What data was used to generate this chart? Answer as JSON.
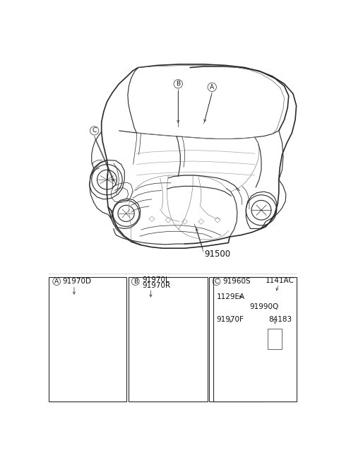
{
  "bg_color": "#ffffff",
  "line_color": "#2a2a2a",
  "label_color": "#111111",
  "part_number_main": "91500",
  "callout_A": "A",
  "callout_B": "B",
  "callout_C": "C",
  "label_91970D": "91970D",
  "label_91970L": "91970L",
  "label_91970R": "91970R",
  "label_91960S": "91960S",
  "label_1141AC": "1141AC",
  "label_1129EA": "1129EA",
  "label_91990Q": "91990Q",
  "label_91970F": "91970F",
  "label_84183": "84183",
  "font_size_label": 7.5,
  "font_size_callout": 6.5
}
